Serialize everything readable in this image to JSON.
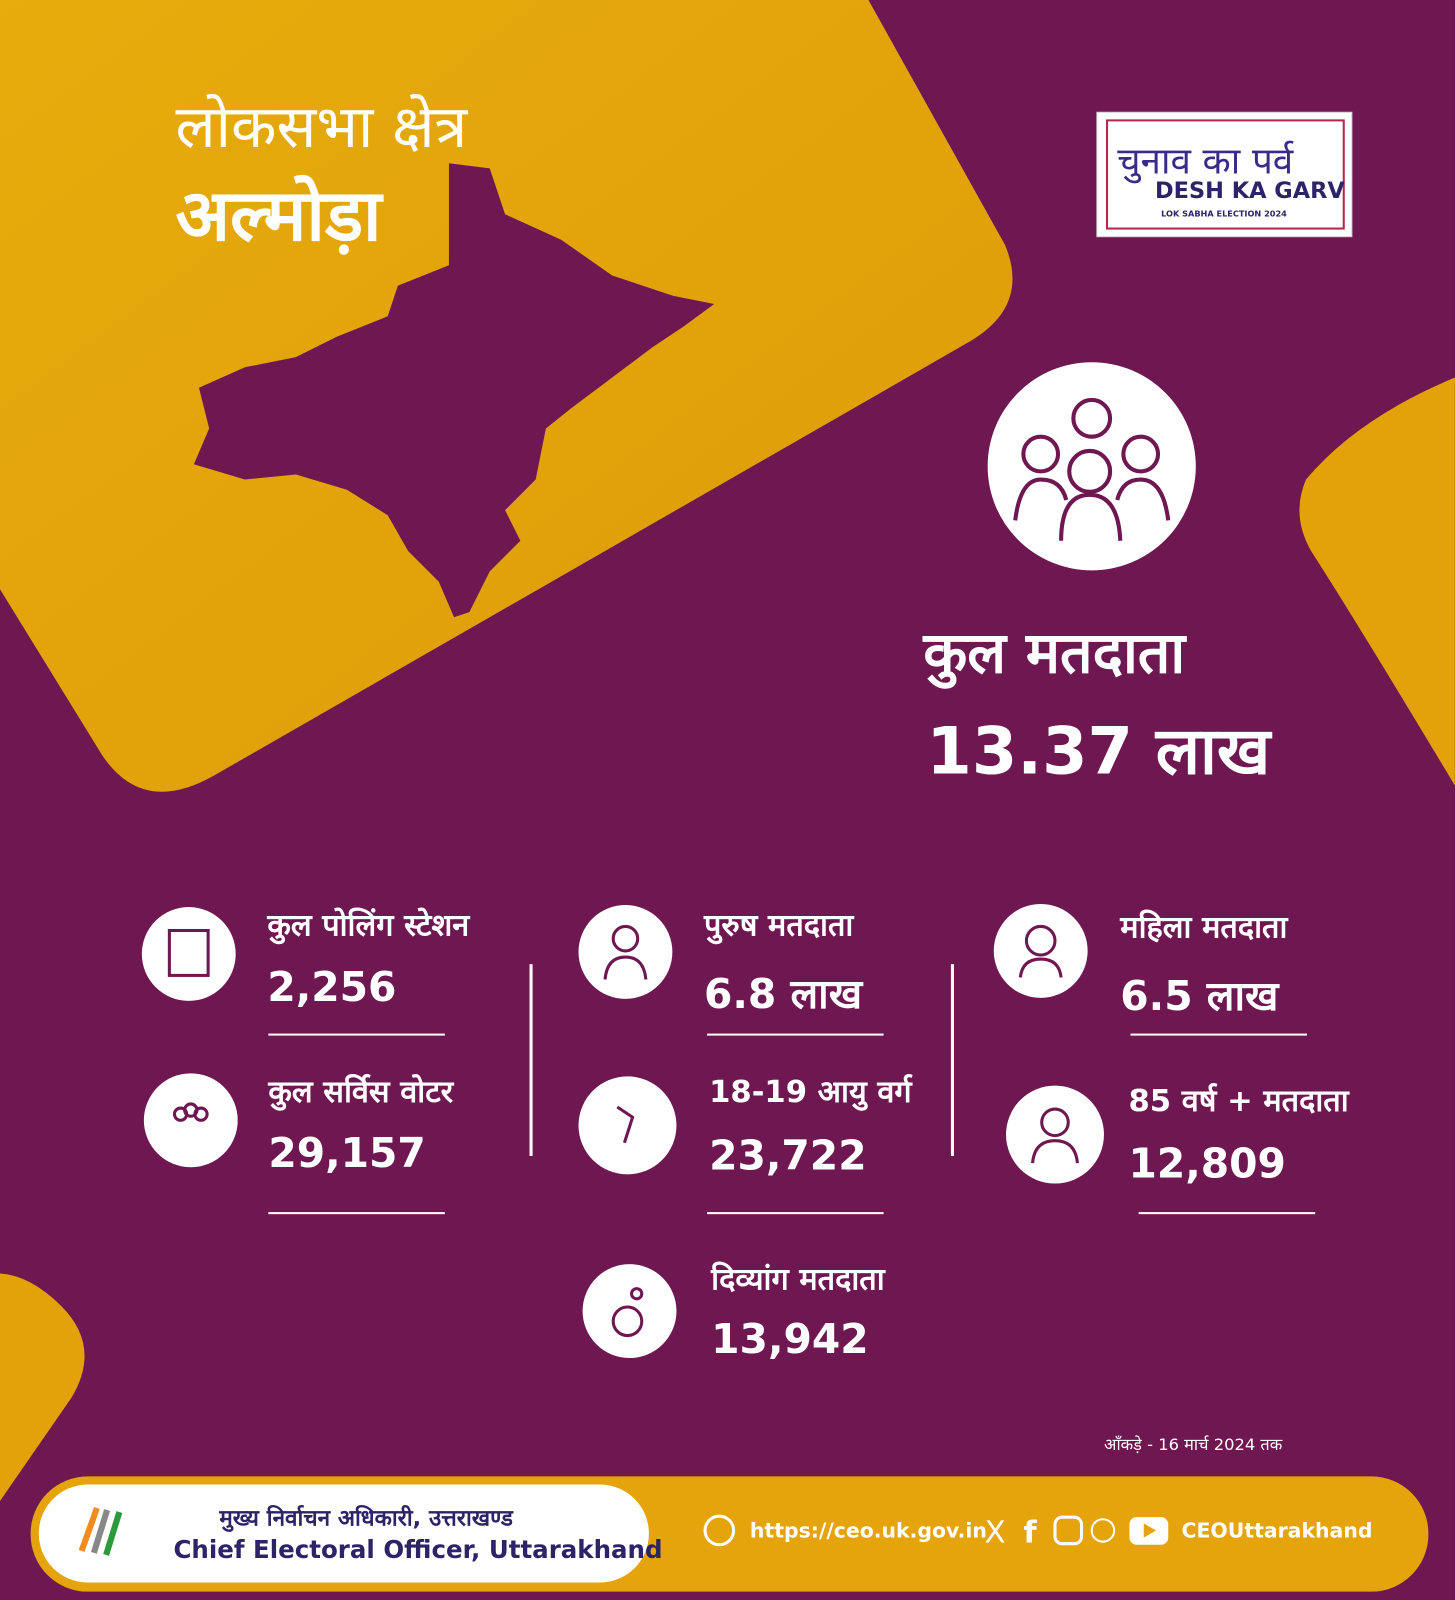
{
  "header": {
    "line1": "लोकसभा क्षेत्र",
    "constituency": "अल्मोड़ा"
  },
  "logo": {
    "hindi": "चुनाव का पर्व",
    "english": "DESH KA GARV",
    "sub": "LOK SABHA ELECTION 2024"
  },
  "total": {
    "label": "कुल मतदाता",
    "value": "13.37 लाख"
  },
  "stats": [
    {
      "label": "कुल पोलिंग स्टेशन",
      "value": "2,256"
    },
    {
      "label": "पुरुष मतदाता",
      "value": "6.8 लाख"
    },
    {
      "label": "महिला मतदाता",
      "value": "6.5 लाख"
    },
    {
      "label": "कुल सर्विस वोटर",
      "value": "29,157"
    },
    {
      "label": "18-19 आयु वर्ग",
      "value": "23,722"
    },
    {
      "label": "85 वर्ष + मतदाता",
      "value": "12,809"
    },
    {
      "label": "दिव्यांग मतदाता",
      "value": "13,942"
    }
  ],
  "note": "आँकड़े - 16 मार्च 2024 तक",
  "footer": {
    "org_hindi": "मुख्य निर्वाचन अधिकारी, उत्तराखण्ड",
    "org_english": "Chief Electoral Officer, Uttarakhand",
    "website": "https://ceo.uk.gov.in",
    "handle": "CEOUttarakhand"
  }
}
